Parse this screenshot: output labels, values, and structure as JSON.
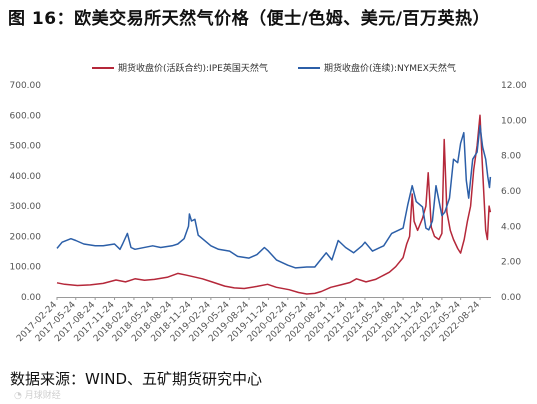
{
  "title": "图 16：欧美交易所天然气价格（便士/色姆、美元/百万英热）",
  "source": "数据来源：WIND、五矿期货研究中心",
  "watermark": "◔ 月球财经",
  "chart_data": {
    "type": "line",
    "title": "图 16：欧美交易所天然气价格（便士/色姆、美元/百万英热）",
    "xlabel": "",
    "ylabel_left": "",
    "ylabel_right": "",
    "x_ticks": [
      "2017-02-24",
      "2017-05-24",
      "2017-08-24",
      "2017-11-24",
      "2018-02-24",
      "2018-05-24",
      "2018-08-24",
      "2018-11-24",
      "2019-02-24",
      "2019-05-24",
      "2019-08-24",
      "2019-11-24",
      "2020-02-24",
      "2020-05-24",
      "2020-08-24",
      "2020-11-24",
      "2021-02-24",
      "2021-05-24",
      "2021-08-24",
      "2021-11-24",
      "2022-02-24",
      "2022-05-24",
      "2022-08-24"
    ],
    "x_range": [
      "2017-02-24",
      "2022-10-15"
    ],
    "ylim_left": [
      0,
      700
    ],
    "yticks_left": [
      "0.00",
      "100.00",
      "200.00",
      "300.00",
      "400.00",
      "500.00",
      "600.00",
      "700.00"
    ],
    "ylim_right": [
      0,
      12
    ],
    "yticks_right": [
      "0.00",
      "2.00",
      "4.00",
      "6.00",
      "8.00",
      "10.00",
      "12.00"
    ],
    "grid": false,
    "legend_position": "top",
    "series": [
      {
        "name": "期货收盘价(活跃合约):IPE英国天然气",
        "axis": "left",
        "color": "#b5283a",
        "points": [
          [
            "2017-02-24",
            47
          ],
          [
            "2017-04-01",
            42
          ],
          [
            "2017-06-01",
            38
          ],
          [
            "2017-08-01",
            40
          ],
          [
            "2017-10-01",
            45
          ],
          [
            "2017-12-01",
            56
          ],
          [
            "2018-01-15",
            50
          ],
          [
            "2018-03-01",
            60
          ],
          [
            "2018-04-15",
            55
          ],
          [
            "2018-06-01",
            58
          ],
          [
            "2018-08-01",
            65
          ],
          [
            "2018-09-20",
            78
          ],
          [
            "2018-11-01",
            72
          ],
          [
            "2018-12-15",
            65
          ],
          [
            "2019-01-15",
            60
          ],
          [
            "2019-03-01",
            50
          ],
          [
            "2019-05-01",
            36
          ],
          [
            "2019-06-15",
            30
          ],
          [
            "2019-08-01",
            28
          ],
          [
            "2019-10-01",
            35
          ],
          [
            "2019-11-20",
            42
          ],
          [
            "2020-01-01",
            32
          ],
          [
            "2020-03-01",
            24
          ],
          [
            "2020-04-15",
            15
          ],
          [
            "2020-05-24",
            10
          ],
          [
            "2020-07-01",
            12
          ],
          [
            "2020-08-01",
            18
          ],
          [
            "2020-09-15",
            32
          ],
          [
            "2020-11-01",
            40
          ],
          [
            "2020-12-15",
            48
          ],
          [
            "2021-01-15",
            60
          ],
          [
            "2021-03-01",
            50
          ],
          [
            "2021-04-15",
            58
          ],
          [
            "2021-05-24",
            72
          ],
          [
            "2021-06-20",
            82
          ],
          [
            "2021-07-20",
            100
          ],
          [
            "2021-08-24",
            130
          ],
          [
            "2021-09-10",
            175
          ],
          [
            "2021-09-24",
            200
          ],
          [
            "2021-10-06",
            340
          ],
          [
            "2021-10-15",
            250
          ],
          [
            "2021-11-01",
            220
          ],
          [
            "2021-11-24",
            260
          ],
          [
            "2021-12-10",
            300
          ],
          [
            "2021-12-21",
            410
          ],
          [
            "2022-01-05",
            230
          ],
          [
            "2022-01-20",
            200
          ],
          [
            "2022-02-10",
            190
          ],
          [
            "2022-02-24",
            210
          ],
          [
            "2022-03-07",
            520
          ],
          [
            "2022-03-20",
            280
          ],
          [
            "2022-04-05",
            220
          ],
          [
            "2022-04-20",
            190
          ],
          [
            "2022-05-10",
            160
          ],
          [
            "2022-05-24",
            145
          ],
          [
            "2022-06-10",
            190
          ],
          [
            "2022-06-25",
            250
          ],
          [
            "2022-07-10",
            300
          ],
          [
            "2022-07-25",
            420
          ],
          [
            "2022-08-10",
            500
          ],
          [
            "2022-08-24",
            600
          ],
          [
            "2022-09-05",
            420
          ],
          [
            "2022-09-20",
            220
          ],
          [
            "2022-09-28",
            190
          ],
          [
            "2022-10-06",
            300
          ],
          [
            "2022-10-12",
            280
          ]
        ]
      },
      {
        "name": "期货收盘价(连续):NYMEX天然气",
        "axis": "right",
        "color": "#2c5fa8",
        "points": [
          [
            "2017-02-24",
            2.75
          ],
          [
            "2017-03-20",
            3.1
          ],
          [
            "2017-05-01",
            3.3
          ],
          [
            "2017-05-24",
            3.2
          ],
          [
            "2017-07-01",
            3.0
          ],
          [
            "2017-08-24",
            2.9
          ],
          [
            "2017-10-01",
            2.9
          ],
          [
            "2017-11-24",
            3.0
          ],
          [
            "2017-12-20",
            2.7
          ],
          [
            "2018-01-01",
            3.0
          ],
          [
            "2018-01-24",
            3.6
          ],
          [
            "2018-02-10",
            2.8
          ],
          [
            "2018-03-01",
            2.7
          ],
          [
            "2018-05-24",
            2.9
          ],
          [
            "2018-07-01",
            2.8
          ],
          [
            "2018-08-24",
            2.9
          ],
          [
            "2018-09-20",
            3.0
          ],
          [
            "2018-10-20",
            3.3
          ],
          [
            "2018-11-10",
            4.0
          ],
          [
            "2018-11-14",
            4.7
          ],
          [
            "2018-11-24",
            4.3
          ],
          [
            "2018-12-10",
            4.4
          ],
          [
            "2018-12-26",
            3.5
          ],
          [
            "2019-01-15",
            3.3
          ],
          [
            "2019-02-24",
            2.9
          ],
          [
            "2019-04-01",
            2.7
          ],
          [
            "2019-05-24",
            2.6
          ],
          [
            "2019-07-01",
            2.3
          ],
          [
            "2019-08-24",
            2.2
          ],
          [
            "2019-10-01",
            2.4
          ],
          [
            "2019-11-05",
            2.8
          ],
          [
            "2019-11-24",
            2.6
          ],
          [
            "2020-01-01",
            2.1
          ],
          [
            "2020-02-24",
            1.8
          ],
          [
            "2020-04-01",
            1.65
          ],
          [
            "2020-05-24",
            1.7
          ],
          [
            "2020-07-01",
            1.7
          ],
          [
            "2020-08-24",
            2.5
          ],
          [
            "2020-09-20",
            2.1
          ],
          [
            "2020-10-20",
            3.2
          ],
          [
            "2020-11-24",
            2.8
          ],
          [
            "2021-01-01",
            2.5
          ],
          [
            "2021-02-10",
            2.9
          ],
          [
            "2021-02-24",
            3.1
          ],
          [
            "2021-04-01",
            2.6
          ],
          [
            "2021-05-24",
            2.9
          ],
          [
            "2021-07-01",
            3.6
          ],
          [
            "2021-08-24",
            3.9
          ],
          [
            "2021-09-15",
            5.2
          ],
          [
            "2021-10-06",
            6.3
          ],
          [
            "2021-10-25",
            5.4
          ],
          [
            "2021-11-24",
            5.1
          ],
          [
            "2021-12-10",
            3.9
          ],
          [
            "2021-12-24",
            3.8
          ],
          [
            "2022-01-10",
            4.3
          ],
          [
            "2022-01-27",
            6.3
          ],
          [
            "2022-02-24",
            4.6
          ],
          [
            "2022-03-10",
            4.8
          ],
          [
            "2022-04-01",
            5.6
          ],
          [
            "2022-04-20",
            7.8
          ],
          [
            "2022-05-10",
            7.6
          ],
          [
            "2022-05-24",
            8.7
          ],
          [
            "2022-06-08",
            9.3
          ],
          [
            "2022-06-20",
            6.6
          ],
          [
            "2022-07-01",
            5.6
          ],
          [
            "2022-07-20",
            7.8
          ],
          [
            "2022-08-10",
            8.2
          ],
          [
            "2022-08-24",
            9.7
          ],
          [
            "2022-09-05",
            8.5
          ],
          [
            "2022-09-20",
            7.8
          ],
          [
            "2022-09-30",
            6.8
          ],
          [
            "2022-10-08",
            6.2
          ],
          [
            "2022-10-12",
            6.8
          ]
        ]
      }
    ]
  }
}
